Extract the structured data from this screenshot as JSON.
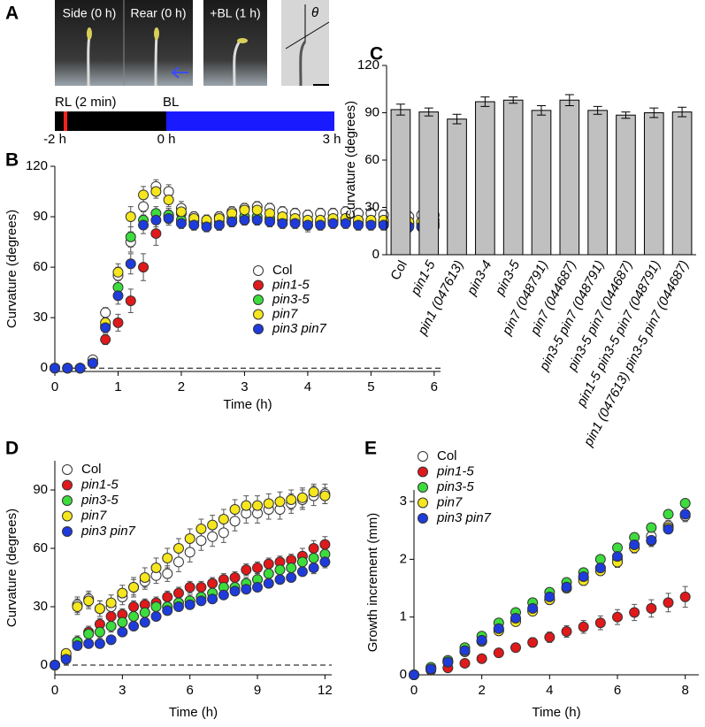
{
  "panel_a": {
    "label": "A",
    "photos": [
      "Side (0 h)",
      "Rear (0 h)",
      "+BL (1 h)"
    ],
    "angle": "θ",
    "timeline": {
      "rl": "RL (2 min)",
      "bl": "BL",
      "times": [
        "-2 h",
        "0 h",
        "3 h"
      ]
    }
  },
  "chart_data": [
    {
      "label": "B",
      "type": "scatter",
      "xlabel": "Time (h)",
      "ylabel": "Curvature (degrees)",
      "zero_line": true,
      "x": [
        0,
        0.2,
        0.4,
        0.6,
        0.8,
        1,
        1.2,
        1.4,
        1.6,
        1.8,
        2,
        2.2,
        2.4,
        2.6,
        2.8,
        3,
        3.2,
        3.4,
        3.6,
        3.8,
        4,
        4.2,
        4.4,
        4.6,
        4.8,
        5,
        5.2,
        5.4,
        5.6,
        5.8,
        6
      ],
      "series": [
        {
          "name": "Col",
          "color": "#ffffff",
          "values": [
            0,
            0,
            0,
            5,
            33,
            55,
            75,
            96,
            108,
            105,
            95,
            90,
            88,
            90,
            93,
            95,
            96,
            95,
            93,
            92,
            91,
            92,
            92,
            93,
            92,
            92,
            91,
            91,
            90,
            91,
            91
          ],
          "errors": [
            0,
            0,
            0,
            1,
            3,
            5,
            6,
            5,
            4,
            4,
            4,
            3,
            3,
            3,
            3,
            3,
            3,
            3,
            3,
            3,
            3,
            3,
            3,
            3,
            3,
            3,
            3,
            3,
            3,
            3,
            3
          ]
        },
        {
          "name": "pin1-5",
          "color": "#e0191b",
          "values": [
            0,
            0,
            0,
            3,
            17,
            27,
            40,
            60,
            80,
            90,
            92,
            88,
            86,
            85,
            87,
            88,
            89,
            89,
            88,
            87,
            85,
            86,
            87,
            87,
            86,
            86,
            86,
            85,
            85,
            84,
            85
          ],
          "errors": [
            0,
            0,
            0,
            1,
            3,
            5,
            7,
            8,
            7,
            5,
            4,
            3,
            3,
            3,
            3,
            3,
            3,
            3,
            3,
            3,
            4,
            3,
            3,
            3,
            3,
            3,
            3,
            3,
            3,
            3,
            3
          ]
        },
        {
          "name": "pin3-5",
          "color": "#3ddc3d",
          "values": [
            0,
            0,
            0,
            3,
            25,
            48,
            78,
            88,
            92,
            91,
            88,
            87,
            86,
            87,
            89,
            90,
            90,
            89,
            88,
            88,
            87,
            87,
            88,
            88,
            87,
            87,
            87,
            86,
            86,
            86,
            86
          ],
          "errors": [
            0,
            0,
            0,
            1,
            3,
            5,
            6,
            5,
            4,
            3,
            3,
            3,
            3,
            3,
            3,
            3,
            3,
            3,
            3,
            3,
            3,
            3,
            3,
            3,
            3,
            3,
            3,
            3,
            3,
            3,
            3
          ]
        },
        {
          "name": "pin7",
          "color": "#f5e61e",
          "values": [
            0,
            0,
            0,
            3,
            27,
            57,
            90,
            103,
            105,
            100,
            93,
            89,
            88,
            89,
            92,
            94,
            94,
            92,
            90,
            89,
            88,
            88,
            89,
            89,
            88,
            88,
            88,
            87,
            87,
            87,
            88
          ],
          "errors": [
            0,
            0,
            0,
            1,
            3,
            5,
            6,
            5,
            4,
            4,
            3,
            3,
            3,
            3,
            3,
            3,
            3,
            3,
            3,
            3,
            3,
            3,
            3,
            3,
            3,
            3,
            3,
            3,
            3,
            3,
            3
          ]
        },
        {
          "name": "pin3 pin7",
          "color": "#1e3cdc",
          "values": [
            0,
            0,
            0,
            3,
            24,
            43,
            62,
            85,
            88,
            89,
            86,
            85,
            84,
            85,
            87,
            88,
            88,
            87,
            86,
            86,
            85,
            85,
            86,
            86,
            85,
            85,
            85,
            84,
            84,
            84,
            84
          ],
          "errors": [
            0,
            0,
            0,
            1,
            3,
            5,
            6,
            5,
            4,
            3,
            3,
            3,
            3,
            3,
            3,
            3,
            3,
            3,
            3,
            3,
            3,
            3,
            3,
            3,
            3,
            3,
            3,
            3,
            3,
            3,
            3
          ]
        }
      ],
      "xlim": [
        0,
        6.1
      ],
      "ylim": [
        -2,
        120
      ],
      "xticks": [
        0,
        1,
        2,
        3,
        4,
        5,
        6
      ],
      "yticks": [
        0,
        30,
        60,
        90,
        120
      ]
    },
    {
      "label": "C",
      "type": "bar",
      "ylabel": "Curvature (degrees)",
      "color": "#c0c0c0",
      "categories": [
        "Col",
        "pin1-5",
        "pin1 (047613)",
        "pin3-4",
        "pin3-5",
        "pin7 (048791)",
        "pin7 (044687)",
        "pin3-5 pin7 (048791)",
        "pin3-5 pin7 (044687)",
        "pin1-5 pin3-5 pin7 (048791)",
        "pin1 (047613) pin3-5 pin7 (044687)"
      ],
      "values": [
        92,
        90.5,
        86,
        97,
        98,
        91.5,
        98,
        91.5,
        88.5,
        90,
        90.5
      ],
      "errors": [
        3.5,
        2.5,
        3,
        3,
        2,
        3,
        3.5,
        2.5,
        2,
        3,
        3
      ],
      "ylim": [
        0,
        120
      ],
      "yticks": [
        0,
        30,
        60,
        90,
        120
      ]
    },
    {
      "label": "D",
      "type": "scatter",
      "xlabel": "Time (h)",
      "ylabel": "Curvature (degrees)",
      "zero_line": true,
      "x": [
        0,
        0.5,
        1,
        1.5,
        2,
        2.5,
        3,
        3.5,
        4,
        4.5,
        5,
        5.5,
        6,
        6.5,
        7,
        7.5,
        8,
        8.5,
        9,
        9.5,
        10,
        10.5,
        11,
        11.5,
        12
      ],
      "series": [
        {
          "name": "Col",
          "color": "#ffffff",
          "values": [
            0,
            5,
            31,
            34,
            29,
            30,
            35,
            40,
            43,
            46,
            47,
            53,
            58,
            64,
            66,
            68,
            74,
            78,
            78,
            80,
            80,
            83,
            85,
            87,
            88
          ],
          "errors": [
            0,
            2,
            4,
            4,
            4,
            4,
            4,
            4,
            4,
            4,
            4,
            5,
            5,
            5,
            5,
            5,
            5,
            5,
            5,
            5,
            5,
            5,
            5,
            5,
            5
          ]
        },
        {
          "name": "pin1-5",
          "color": "#e0191b",
          "values": [
            0,
            4,
            12,
            17,
            21,
            25,
            26,
            30,
            31,
            32,
            35,
            37,
            40,
            40,
            42,
            44,
            45,
            49,
            50,
            52,
            53,
            54,
            56,
            60,
            62
          ],
          "errors": [
            0,
            2,
            3,
            3,
            3,
            3,
            3,
            3,
            3,
            3,
            3,
            3,
            3,
            3,
            3,
            3,
            3,
            3,
            3,
            3,
            3,
            3,
            4,
            4,
            4
          ]
        },
        {
          "name": "pin3-5",
          "color": "#3ddc3d",
          "values": [
            0,
            4,
            12,
            16,
            17,
            20,
            22,
            25,
            27,
            30,
            30,
            32,
            33,
            35,
            37,
            40,
            40,
            42,
            44,
            47,
            49,
            50,
            53,
            55,
            57
          ],
          "errors": [
            0,
            2,
            3,
            3,
            3,
            3,
            3,
            3,
            3,
            3,
            3,
            3,
            3,
            3,
            3,
            3,
            3,
            3,
            3,
            3,
            3,
            3,
            3,
            3,
            4
          ]
        },
        {
          "name": "pin7",
          "color": "#f5e61e",
          "values": [
            0,
            6,
            30,
            33,
            29,
            32,
            37,
            40,
            45,
            50,
            55,
            60,
            65,
            70,
            72,
            75,
            80,
            82,
            82,
            83,
            84,
            85,
            86,
            89,
            87
          ],
          "errors": [
            0,
            2,
            4,
            4,
            4,
            4,
            4,
            5,
            5,
            5,
            5,
            5,
            5,
            5,
            5,
            5,
            5,
            5,
            5,
            5,
            5,
            5,
            5,
            4,
            4
          ]
        },
        {
          "name": "pin3 pin7",
          "color": "#1e3cdc",
          "values": [
            0,
            3,
            10,
            11,
            11,
            13,
            17,
            20,
            22,
            25,
            28,
            30,
            31,
            33,
            34,
            36,
            38,
            39,
            40,
            42,
            44,
            45,
            48,
            50,
            53
          ],
          "errors": [
            0,
            2,
            2,
            2,
            2,
            2,
            2,
            2,
            2,
            2,
            2,
            2,
            2,
            2,
            2,
            2,
            2,
            2,
            2,
            2,
            2,
            2,
            2,
            3,
            3
          ]
        }
      ],
      "xlim": [
        0,
        12.3
      ],
      "ylim": [
        -5,
        105
      ],
      "xticks": [
        0,
        3,
        6,
        9,
        12
      ],
      "yticks": [
        0,
        30,
        60,
        90
      ]
    },
    {
      "label": "E",
      "type": "scatter",
      "xlabel": "Time (h)",
      "ylabel": "Growth increment (mm)",
      "zero_line": false,
      "x": [
        0,
        0.5,
        1,
        1.5,
        2,
        2.5,
        3,
        3.5,
        4,
        4.5,
        5,
        5.5,
        6,
        6.5,
        7,
        7.5,
        8
      ],
      "series": [
        {
          "name": "Col",
          "color": "#ffffff",
          "values": [
            0,
            0.12,
            0.22,
            0.4,
            0.58,
            0.78,
            0.95,
            1.12,
            1.3,
            1.5,
            1.68,
            1.85,
            2.0,
            2.2,
            2.4,
            2.58,
            2.75
          ],
          "errors": [
            0,
            0.02,
            0.03,
            0.04,
            0.04,
            0.05,
            0.05,
            0.05,
            0.06,
            0.06,
            0.06,
            0.07,
            0.07,
            0.08,
            0.08,
            0.09,
            0.1
          ]
        },
        {
          "name": "pin1-5",
          "color": "#e0191b",
          "values": [
            0,
            0.08,
            0.12,
            0.2,
            0.28,
            0.38,
            0.47,
            0.56,
            0.65,
            0.75,
            0.83,
            0.9,
            1.0,
            1.08,
            1.15,
            1.25,
            1.35
          ],
          "errors": [
            0,
            0.02,
            0.03,
            0.04,
            0.05,
            0.06,
            0.07,
            0.08,
            0.09,
            0.1,
            0.11,
            0.12,
            0.13,
            0.14,
            0.15,
            0.16,
            0.18
          ]
        },
        {
          "name": "pin3-5",
          "color": "#3ddc3d",
          "values": [
            0,
            0.13,
            0.25,
            0.47,
            0.67,
            0.9,
            1.08,
            1.25,
            1.43,
            1.6,
            1.77,
            2.0,
            2.2,
            2.38,
            2.55,
            2.78,
            2.97
          ],
          "errors": [
            0,
            0.02,
            0.03,
            0.03,
            0.03,
            0.03,
            0.04,
            0.04,
            0.04,
            0.04,
            0.04,
            0.05,
            0.05,
            0.05,
            0.05,
            0.05,
            0.05
          ]
        },
        {
          "name": "pin7",
          "color": "#f5e61e",
          "values": [
            0,
            0.1,
            0.22,
            0.4,
            0.58,
            0.76,
            0.92,
            1.1,
            1.3,
            1.5,
            1.63,
            1.8,
            1.95,
            2.2,
            2.32,
            2.55,
            2.78
          ],
          "errors": [
            0,
            0.02,
            0.03,
            0.04,
            0.05,
            0.05,
            0.06,
            0.06,
            0.07,
            0.07,
            0.08,
            0.08,
            0.09,
            0.09,
            0.1,
            0.1,
            0.11
          ]
        },
        {
          "name": "pin3 pin7",
          "color": "#1e3cdc",
          "values": [
            0,
            0.1,
            0.22,
            0.42,
            0.6,
            0.8,
            0.98,
            1.15,
            1.35,
            1.52,
            1.7,
            1.85,
            2.05,
            2.25,
            2.33,
            2.52,
            2.78
          ],
          "errors": [
            0,
            0.02,
            0.03,
            0.03,
            0.04,
            0.04,
            0.04,
            0.05,
            0.05,
            0.05,
            0.05,
            0.06,
            0.06,
            0.06,
            0.06,
            0.07,
            0.07
          ]
        }
      ],
      "xlim": [
        0,
        8.4
      ],
      "ylim": [
        0,
        3.2
      ],
      "xticks": [
        0,
        2,
        4,
        6,
        8
      ],
      "yticks": [
        0,
        1,
        2,
        3
      ]
    }
  ]
}
